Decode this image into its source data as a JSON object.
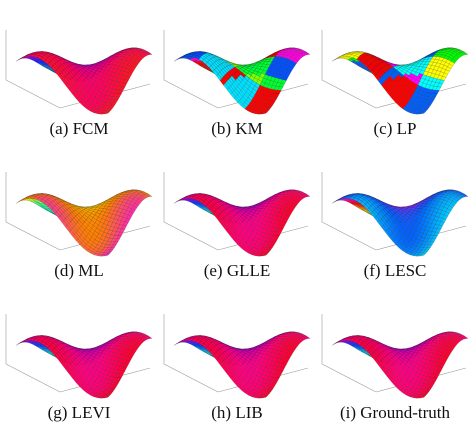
{
  "figure": {
    "panels": [
      {
        "caption": "(a) FCM",
        "style": "smooth_bands",
        "palette": [
          "#00c800",
          "#00a0ff",
          "#1020ff",
          "#a000ff",
          "#ff0060",
          "#ff2000"
        ]
      },
      {
        "caption": "(b) KM",
        "style": "patches",
        "palette": [
          "#00ff30",
          "#0050ff",
          "#00e0ff",
          "#ff0000",
          "#ff00e0",
          "#80ff00"
        ]
      },
      {
        "caption": "(c) LP",
        "style": "patches",
        "palette": [
          "#00ffff",
          "#ffff00",
          "#ff0000",
          "#0060ff",
          "#00ff00",
          "#ff00ff"
        ]
      },
      {
        "caption": "(d) ML",
        "style": "smooth_bands",
        "palette": [
          "#00d0ff",
          "#00ffd0",
          "#40ff80",
          "#ffff00",
          "#ff8000",
          "#ff00ff"
        ]
      },
      {
        "caption": "(e) GLLE",
        "style": "smooth_bands",
        "palette": [
          "#00c000",
          "#00ffff",
          "#0040ff",
          "#8000ff",
          "#ff0080",
          "#ff0000"
        ]
      },
      {
        "caption": "(f) LESC",
        "style": "smooth_bands",
        "palette": [
          "#00c000",
          "#ffff00",
          "#ff0000",
          "#ff00ff",
          "#0060ff",
          "#00ffff"
        ]
      },
      {
        "caption": "(g) LEVI",
        "style": "smooth_bands",
        "palette": [
          "#00c000",
          "#00ffff",
          "#0040ff",
          "#8000ff",
          "#ff0080",
          "#ff0000"
        ]
      },
      {
        "caption": "(h) LIB",
        "style": "smooth_bands",
        "palette": [
          "#00c000",
          "#00ffff",
          "#0040ff",
          "#8000ff",
          "#ff0080",
          "#ff0000"
        ]
      },
      {
        "caption": "(i) Ground-truth",
        "style": "smooth_bands",
        "palette": [
          "#00c000",
          "#00ffff",
          "#0040ff",
          "#8000ff",
          "#ff0080",
          "#ff0000"
        ]
      }
    ]
  }
}
